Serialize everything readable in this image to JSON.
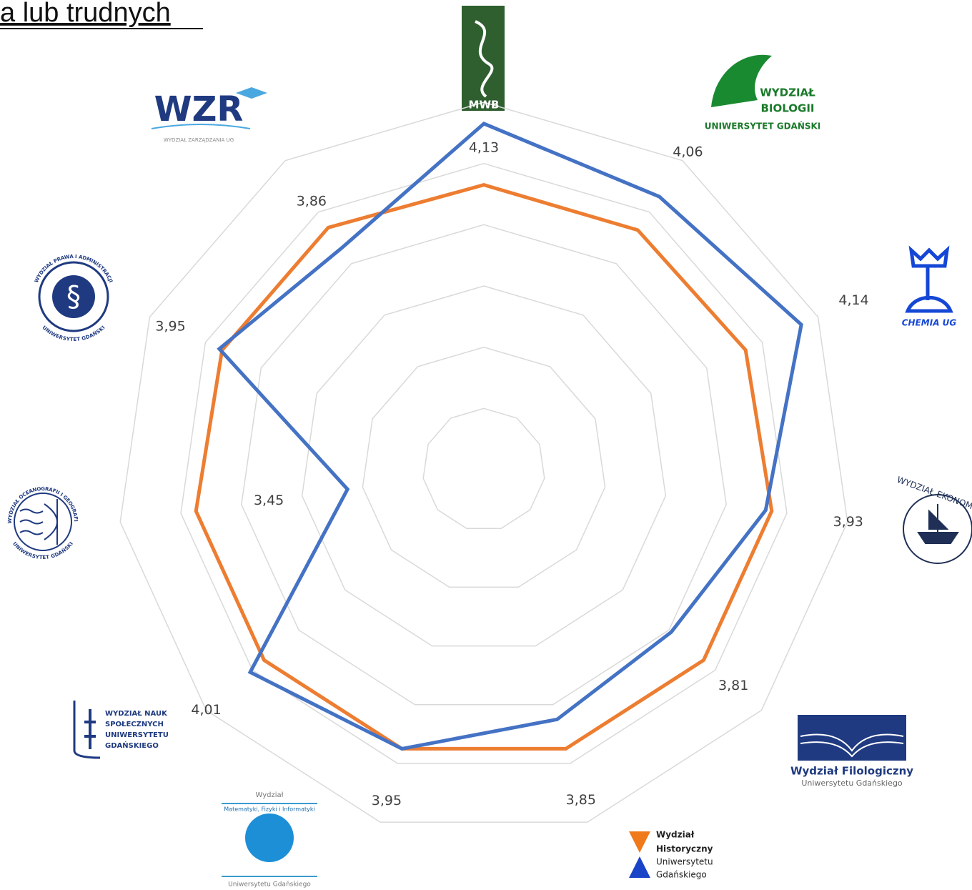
{
  "chart_data": {
    "type": "radar",
    "title": "a lub trudnych",
    "categories": [
      [
        "MWB"
      ],
      [
        "WYDZIAŁ",
        "BIOLOGII",
        "UNIWERSYTET GDAŃSKI"
      ],
      [
        "CHEMIA UG"
      ],
      [
        "WYDZIAŁ EKONOM"
      ],
      [
        "Wydział Filologiczny",
        "Uniwersytetu Gdańskiego"
      ],
      [
        "Wydział",
        "Historyczny",
        "Uniwersytetu",
        "Gdańskiego"
      ],
      [
        "Wydział",
        "Matematyki, Fizyki i Informatyki",
        "Uniwersytetu Gdańskiego"
      ],
      [
        "WYDZIAŁ NAUK",
        "SPOŁECZNYCH",
        "UNIWERSYTETU",
        "GDAŃSKIEGO"
      ],
      [
        "WYDZIAŁ OCEANOGRAFII I GEOGRAFII",
        "UNIWERSYTET GDAŃSKI"
      ],
      [
        "WYDZIAŁ PRAWA I ADMINISTRACJI",
        "UNIWERSYTET GDAŃSKI"
      ],
      [
        "WZR",
        "WYDZIAŁ ZARZĄDZANIA UG"
      ]
    ],
    "series": [
      {
        "color": "#ed7d31",
        "values": [
          3.93,
          3.93,
          3.94,
          3.95,
          3.95,
          3.95,
          3.95,
          3.95,
          3.95,
          3.94,
          3.94
        ]
      },
      {
        "color": "#4472c4",
        "values": [
          4.13,
          4.06,
          4.14,
          3.93,
          3.81,
          3.85,
          3.95,
          4.01,
          3.45,
          3.95,
          3.86
        ],
        "value_labels": [
          "4,13",
          "4,06",
          "4,14",
          "3,93",
          "3,81",
          "3,85",
          "3,95",
          "4,01",
          "3,45",
          "3,95",
          "3,86"
        ]
      }
    ],
    "ylim": [
      3,
      4.2
    ],
    "yticks": [
      3,
      3.2,
      3.4,
      3.6,
      3.8,
      4,
      4.2
    ],
    "grid": true
  }
}
